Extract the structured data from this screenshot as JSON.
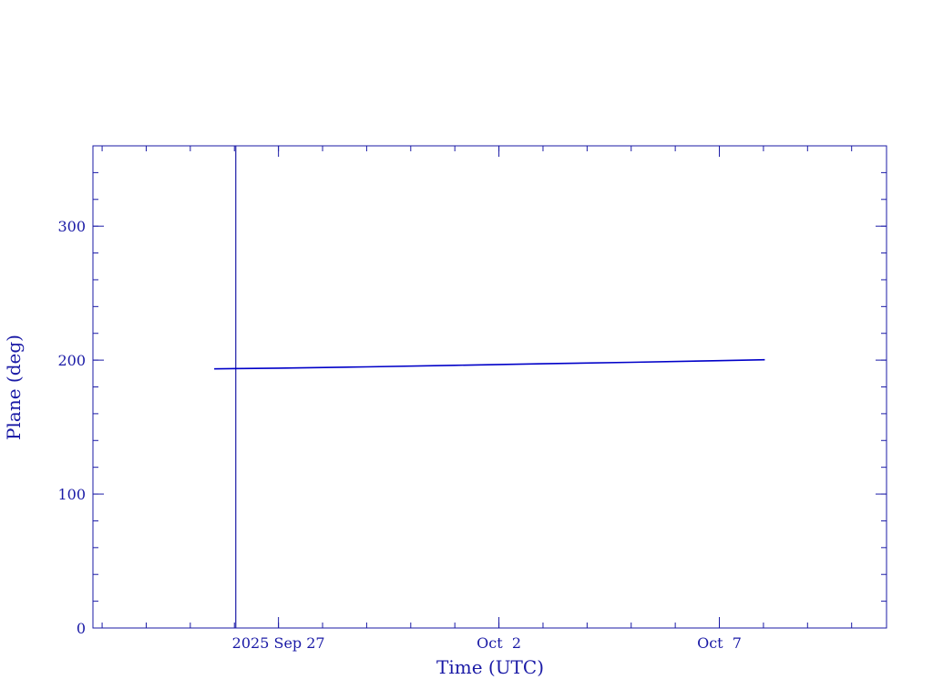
{
  "chart_data": {
    "type": "line",
    "title": "",
    "xlabel": "Time (UTC)",
    "ylabel": "Plane (deg)",
    "xlim": [
      "2025-09-22T19:00:00Z",
      "2025-10-10T19:00:00Z"
    ],
    "ylim": [
      0,
      360
    ],
    "x_ticks": [
      {
        "date": "2025-09-27T00:00:00Z",
        "label": "2025 Sep 27"
      },
      {
        "date": "2025-10-02T00:00:00Z",
        "label": "Oct  2"
      },
      {
        "date": "2025-10-07T00:00:00Z",
        "label": "Oct  7"
      }
    ],
    "y_ticks": [
      {
        "value": 0,
        "label": "0"
      },
      {
        "value": 100,
        "label": "100"
      },
      {
        "value": 200,
        "label": "200"
      },
      {
        "value": 300,
        "label": "300"
      }
    ],
    "grid": false,
    "marker_line": {
      "date": "2025-09-26T00:45:00Z"
    },
    "series": [
      {
        "x": [
          "2025-09-25T13:00:00Z",
          "2025-09-27T00:00:00Z",
          "2025-09-29T00:00:00Z",
          "2025-10-01T00:00:00Z",
          "2025-10-03T00:00:00Z",
          "2025-10-05T00:00:00Z",
          "2025-10-07T00:00:00Z",
          "2025-10-08T00:45:00Z"
        ],
        "y": [
          193.5,
          194.0,
          195.0,
          196.1,
          197.3,
          198.4,
          199.6,
          200.3
        ],
        "color": "#0000c8"
      }
    ],
    "axis_color": "#1a1aa6"
  }
}
